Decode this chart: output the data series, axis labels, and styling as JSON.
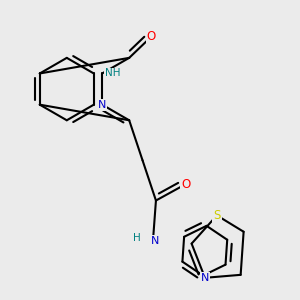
{
  "background_color": "#ebebeb",
  "atom_colors": {
    "O": "#ff0000",
    "N": "#0000cc",
    "S": "#cccc00",
    "H": "#008080",
    "C": "#000000"
  },
  "lw": 1.5,
  "fs": 8.0
}
